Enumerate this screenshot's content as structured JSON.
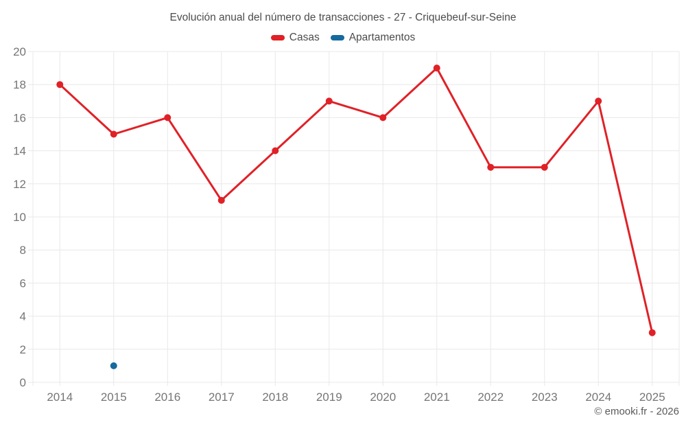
{
  "chart_data": {
    "type": "line",
    "title": "Evolución anual del número de transacciones - 27 - Criquebeuf-sur-Seine",
    "categories": [
      "2014",
      "2015",
      "2016",
      "2017",
      "2018",
      "2019",
      "2020",
      "2021",
      "2022",
      "2023",
      "2024",
      "2025"
    ],
    "series": [
      {
        "name": "Casas",
        "color": "#e02127",
        "values": [
          18,
          15,
          16,
          11,
          14,
          17,
          16,
          19,
          13,
          13,
          17,
          3
        ]
      },
      {
        "name": "Apartamentos",
        "color": "#166a9e",
        "values": [
          null,
          1,
          null,
          null,
          null,
          null,
          null,
          null,
          null,
          null,
          null,
          null
        ]
      }
    ],
    "ylim": [
      0,
      20
    ],
    "ytick_step": 2,
    "grid": true,
    "legend_position": "top",
    "xlabel": "",
    "ylabel": ""
  },
  "footer": {
    "copyright": "© emooki.fr - 2026"
  },
  "colors": {
    "grid": "#e8e8e8",
    "axis_label": "#757575",
    "title": "#4c4c4c",
    "footer": "#5a5a5a",
    "background": "#ffffff"
  }
}
